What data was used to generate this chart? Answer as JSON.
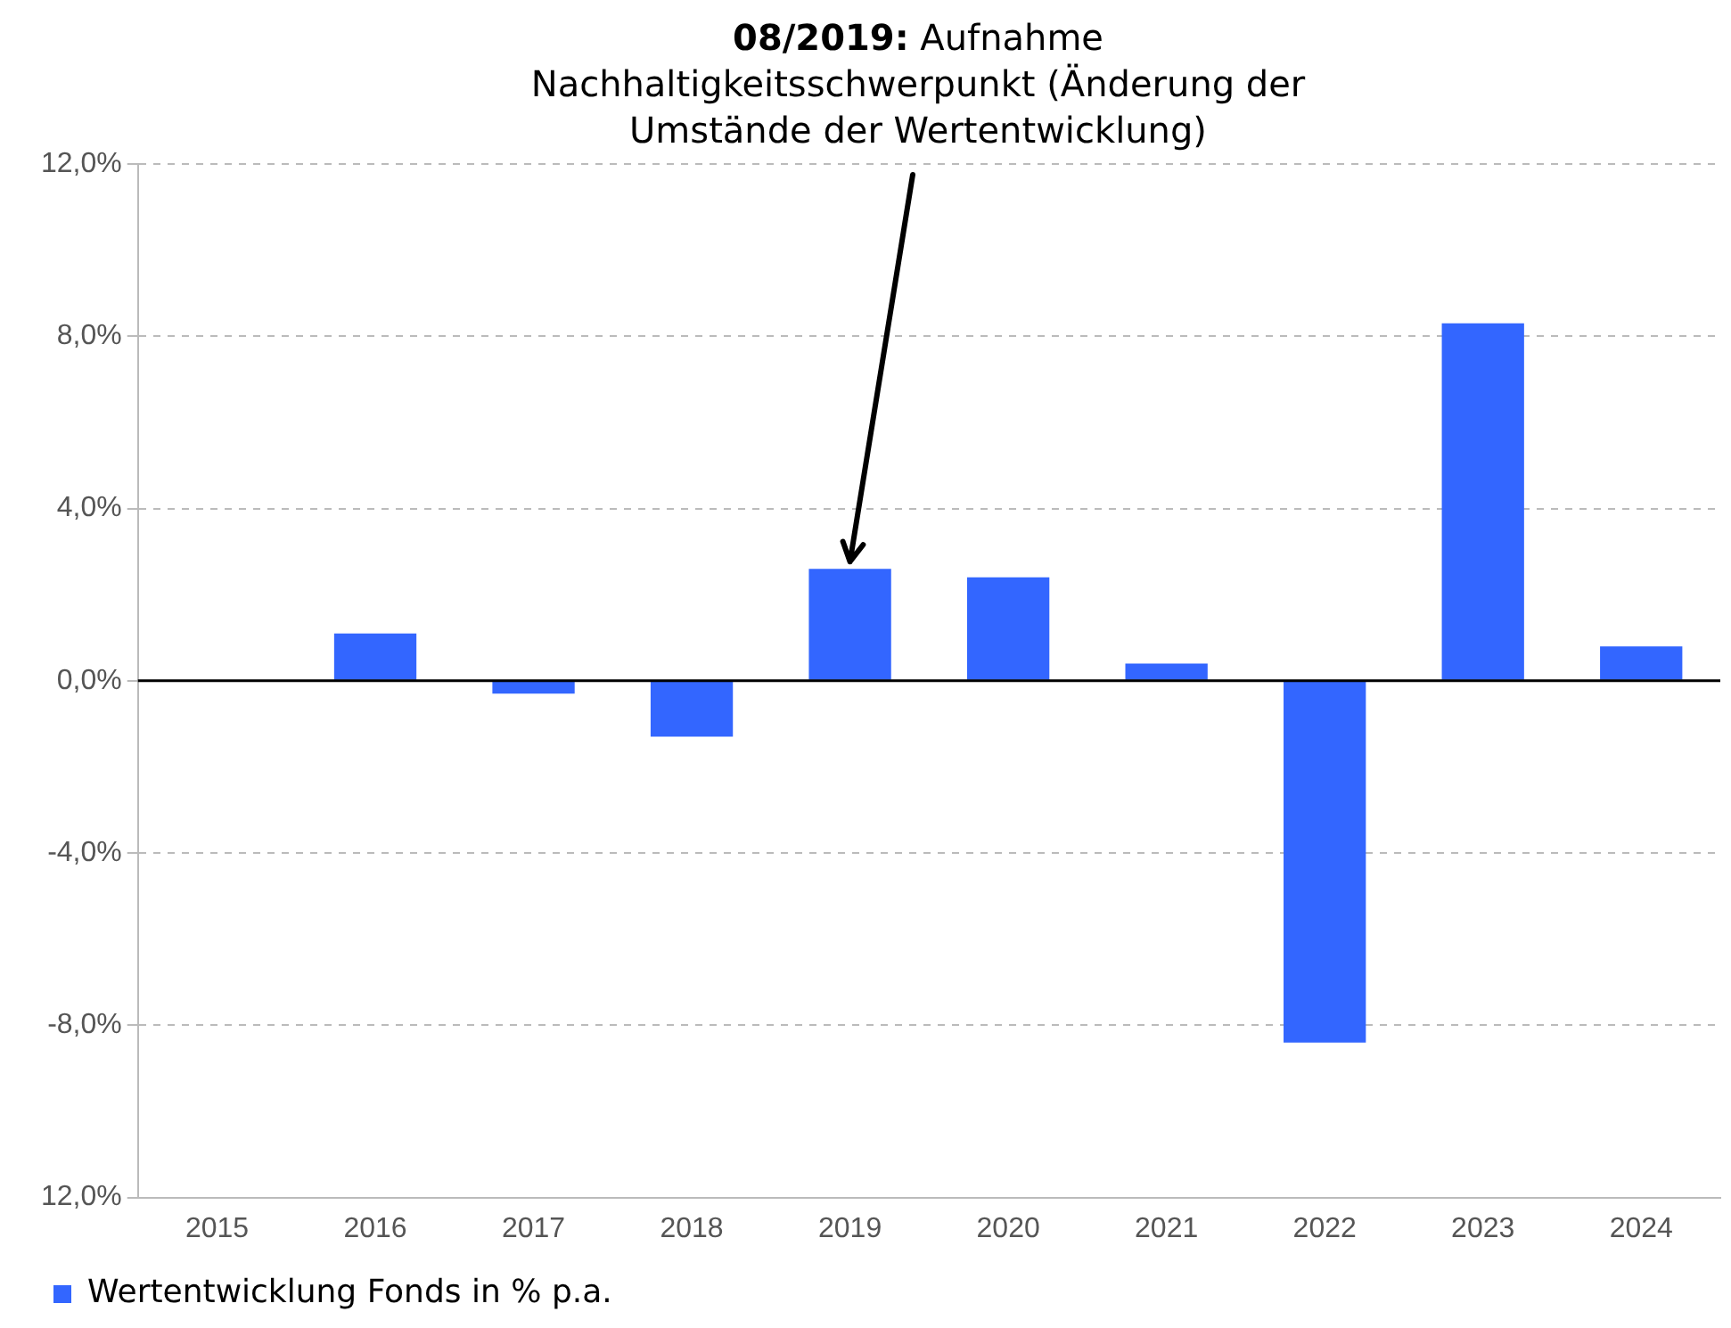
{
  "chart_data": {
    "type": "bar",
    "categories": [
      "2015",
      "2016",
      "2017",
      "2018",
      "2019",
      "2020",
      "2021",
      "2022",
      "2023",
      "2024"
    ],
    "series": [
      {
        "name": "Wertentwicklung Fonds in % p.a.",
        "color": "#3366ff",
        "values": [
          null,
          1.1,
          -0.3,
          -1.3,
          2.6,
          2.4,
          0.4,
          -8.4,
          8.3,
          0.8
        ]
      }
    ],
    "ylim": [
      -12,
      12
    ],
    "yticks": [
      {
        "value": -12,
        "label": "12,0%"
      },
      {
        "value": -8,
        "label": "-8,0%"
      },
      {
        "value": -4,
        "label": "-4,0%"
      },
      {
        "value": 0,
        "label": "0,0%"
      },
      {
        "value": 4,
        "label": "4,0%"
      },
      {
        "value": 8,
        "label": "8,0%"
      },
      {
        "value": 12,
        "label": "12,0%"
      }
    ],
    "grid": "y",
    "legend": "bottom left",
    "ref_lines": [
      {
        "axis": "y",
        "value": 0,
        "color": "#000000"
      }
    ],
    "annotations": [
      {
        "text": "08/2019: Aufnahme Nachhaltigkeitsschwerpunkt (Änderung der Umstände der Wertentwicklung)",
        "x": "2019",
        "y": 2.6
      }
    ]
  }
}
